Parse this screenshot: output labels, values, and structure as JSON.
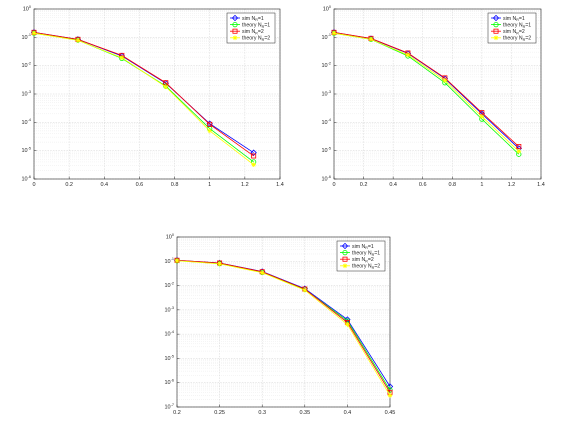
{
  "chart_data": [
    {
      "type": "line",
      "title": "",
      "xlabel": "",
      "ylabel": "",
      "y_scale": "log",
      "xlim": [
        0,
        1.4
      ],
      "ylim": [
        1e-06,
        1
      ],
      "x_ticks": [
        "0",
        "0.2",
        "0.4",
        "0.6",
        "0.8",
        "1",
        "1.2",
        "1.4"
      ],
      "y_ticks": [
        {
          "base": "10",
          "exp": "-6"
        },
        {
          "base": "10",
          "exp": "-5"
        },
        {
          "base": "10",
          "exp": "-4"
        },
        {
          "base": "10",
          "exp": "-3"
        },
        {
          "base": "10",
          "exp": "-2"
        },
        {
          "base": "10",
          "exp": "-1"
        },
        {
          "base": "10",
          "exp": "0"
        }
      ],
      "grid": true,
      "legend_position": "top-right",
      "x": [
        0,
        0.25,
        0.5,
        0.75,
        1,
        1.25
      ],
      "series": [
        {
          "name": "sim N_R=1",
          "name_parts": {
            "pre": "sim N",
            "sub": "R",
            "post": "=1"
          },
          "color": "#0000ff",
          "marker": "diamond",
          "values": [
            0.15,
            0.085,
            0.022,
            0.0024,
            9e-05,
            8.5e-06
          ]
        },
        {
          "name": "theory N_R=1",
          "name_parts": {
            "pre": "theory N",
            "sub": "R",
            "post": "=1"
          },
          "color": "#00ff00",
          "marker": "circle",
          "values": [
            0.14,
            0.08,
            0.018,
            0.0019,
            6e-05,
            4e-06
          ]
        },
        {
          "name": "sim N_R=2",
          "name_parts": {
            "pre": "sim N",
            "sub": "R",
            "post": "=2"
          },
          "color": "#ff0000",
          "marker": "square",
          "values": [
            0.15,
            0.085,
            0.023,
            0.0025,
            8.5e-05,
            6.5e-06
          ]
        },
        {
          "name": "theory N_R=2",
          "name_parts": {
            "pre": "theory N",
            "sub": "R",
            "post": "=2"
          },
          "color": "#ffff00",
          "marker": "star",
          "values": [
            0.14,
            0.078,
            0.019,
            0.0018,
            5e-05,
            3.2e-06
          ]
        }
      ]
    },
    {
      "type": "line",
      "title": "",
      "xlabel": "",
      "ylabel": "",
      "y_scale": "log",
      "xlim": [
        0,
        1.4
      ],
      "ylim": [
        1e-06,
        1
      ],
      "x_ticks": [
        "0",
        "0.2",
        "0.4",
        "0.6",
        "0.8",
        "1",
        "1.2",
        "1.4"
      ],
      "y_ticks": [
        {
          "base": "10",
          "exp": "-6"
        },
        {
          "base": "10",
          "exp": "-5"
        },
        {
          "base": "10",
          "exp": "-4"
        },
        {
          "base": "10",
          "exp": "-3"
        },
        {
          "base": "10",
          "exp": "-2"
        },
        {
          "base": "10",
          "exp": "-1"
        },
        {
          "base": "10",
          "exp": "0"
        }
      ],
      "grid": true,
      "legend_position": "top-right",
      "x": [
        0,
        0.25,
        0.5,
        0.75,
        1,
        1.25
      ],
      "series": [
        {
          "name": "sim N_R=1",
          "name_parts": {
            "pre": "sim N",
            "sub": "R",
            "post": "=1"
          },
          "color": "#0000ff",
          "marker": "diamond",
          "values": [
            0.15,
            0.09,
            0.027,
            0.0035,
            0.0002,
            1.2e-05
          ]
        },
        {
          "name": "theory N_R=1",
          "name_parts": {
            "pre": "theory N",
            "sub": "R",
            "post": "=1"
          },
          "color": "#00ff00",
          "marker": "circle",
          "values": [
            0.14,
            0.085,
            0.022,
            0.0025,
            0.00013,
            7.5e-06
          ]
        },
        {
          "name": "sim N_R=2",
          "name_parts": {
            "pre": "sim N",
            "sub": "R",
            "post": "=2"
          },
          "color": "#ff0000",
          "marker": "square",
          "values": [
            0.15,
            0.092,
            0.028,
            0.0037,
            0.00022,
            1.4e-05
          ]
        },
        {
          "name": "theory N_R=2",
          "name_parts": {
            "pre": "theory N",
            "sub": "R",
            "post": "=2"
          },
          "color": "#ffff00",
          "marker": "star",
          "values": [
            0.14,
            0.085,
            0.024,
            0.003,
            0.00016,
            9.5e-06
          ]
        }
      ]
    },
    {
      "type": "line",
      "title": "",
      "xlabel": "",
      "ylabel": "",
      "y_scale": "log",
      "xlim": [
        0.2,
        0.45
      ],
      "ylim": [
        1e-07,
        1
      ],
      "x_ticks": [
        "0.2",
        "0.25",
        "0.3",
        "0.35",
        "0.4",
        "0.45"
      ],
      "y_ticks": [
        {
          "base": "10",
          "exp": "-7"
        },
        {
          "base": "10",
          "exp": "-6"
        },
        {
          "base": "10",
          "exp": "-5"
        },
        {
          "base": "10",
          "exp": "-4"
        },
        {
          "base": "10",
          "exp": "-3"
        },
        {
          "base": "10",
          "exp": "-2"
        },
        {
          "base": "10",
          "exp": "-1"
        },
        {
          "base": "10",
          "exp": "0"
        }
      ],
      "grid": true,
      "legend_position": "top-right",
      "x": [
        0.2,
        0.25,
        0.3,
        0.35,
        0.4,
        0.45
      ],
      "series": [
        {
          "name": "sim N_R=1",
          "name_parts": {
            "pre": "sim N",
            "sub": "R",
            "post": "=1"
          },
          "color": "#0000ff",
          "marker": "diamond",
          "values": [
            0.11,
            0.085,
            0.038,
            0.0075,
            0.0004,
            7e-07
          ]
        },
        {
          "name": "theory N_R=1",
          "name_parts": {
            "pre": "theory N",
            "sub": "R",
            "post": "=1"
          },
          "color": "#00ff00",
          "marker": "circle",
          "values": [
            0.105,
            0.08,
            0.035,
            0.007,
            0.00035,
            5e-07
          ]
        },
        {
          "name": "sim N_R=2",
          "name_parts": {
            "pre": "sim N",
            "sub": "R",
            "post": "=2"
          },
          "color": "#ff0000",
          "marker": "square",
          "values": [
            0.11,
            0.085,
            0.037,
            0.0072,
            0.0003,
            4e-07
          ]
        },
        {
          "name": "theory N_R=2",
          "name_parts": {
            "pre": "theory N",
            "sub": "R",
            "post": "=2"
          },
          "color": "#ffff00",
          "marker": "star",
          "values": [
            0.105,
            0.078,
            0.034,
            0.0065,
            0.00025,
            3e-07
          ]
        }
      ]
    }
  ]
}
